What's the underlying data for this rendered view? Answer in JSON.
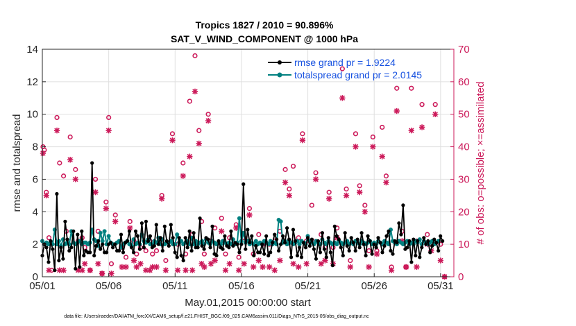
{
  "chart_data": {
    "type": "line",
    "title_line1": "Tropics 1827 / 2010 = 90.896%",
    "title_line2": "SAT_V_WIND_COMPONENT @ 1000 hPa",
    "xlabel": "May.01,2015 00:00:00 start",
    "ylabel_left": "rmse and totalspread",
    "ylabel_right": "# of obs: o=possible; ×=assimilated",
    "footer": "data file: /Users/raeder/DAI/ATM_forcXX/CAM6_setup/f.e21.FHIST_BGC.f09_025.CAM6assim.011/Diags_NTrS_2015-05/obs_diag_output.nc",
    "xlim": [
      1,
      32
    ],
    "ylim_left": [
      0,
      14
    ],
    "ylim_right": [
      0,
      70
    ],
    "x_ticks": [
      1,
      6,
      11,
      16,
      21,
      26,
      31
    ],
    "x_tick_labels": [
      "05/01",
      "05/06",
      "05/11",
      "05/16",
      "05/21",
      "05/26",
      "05/31"
    ],
    "y_ticks_left": [
      "0",
      "2",
      "4",
      "6",
      "8",
      "10",
      "12",
      "14"
    ],
    "y_ticks_right": [
      "0",
      "10",
      "20",
      "30",
      "40",
      "50",
      "60",
      "70"
    ],
    "colors": {
      "rmse": "#000000",
      "spread": "#008080",
      "obs": "#cc1a5a",
      "legend_text": "#1550e0"
    },
    "series": [
      {
        "name": "rmse grand pr = 1.9224",
        "values": [
          1.3,
          2.0,
          1.8,
          0.9,
          2.2,
          1.7,
          0.4,
          5.1,
          1.0,
          1.8,
          1.1,
          3.4,
          2.3,
          1.6,
          1.8,
          2.8,
          0.5,
          2.6,
          0.6,
          2.8,
          1.3,
          1.6,
          1.5,
          1.5,
          7.0,
          1.3,
          1.9,
          2.2,
          1.7,
          2.0,
          1.5,
          1.5,
          2.0,
          2.1,
          1.8,
          2.0,
          1.6,
          1.6,
          2.6,
          1.5,
          2.1,
          2.2,
          2.8,
          1.8,
          1.5,
          2.8,
          2.5,
          1.7,
          3.3,
          1.8,
          3.4,
          2.2,
          2.5,
          1.8,
          1.9,
          3.2,
          2.0,
          2.4,
          1.6,
          3.1,
          2.2,
          1.9,
          3.2,
          2.4,
          1.5,
          1.2,
          2.4,
          1.3,
          1.0,
          2.4,
          1.8,
          2.8,
          1.6,
          2.7,
          1.8,
          1.8,
          3.6,
          1.9,
          1.7,
          2.4,
          2.3,
          1.8,
          3.1,
          1.4,
          1.3,
          2.2,
          1.8,
          1.7,
          2.5,
          1.9,
          1.8,
          2.8,
          1.9,
          2.1,
          2.0,
          1.5,
          2.0,
          5.7,
          1.7,
          2.9,
          2.1,
          2.5,
          1.3,
          1.9,
          1.5,
          1.5,
          2.0,
          1.4,
          2.5,
          1.3,
          1.5,
          2.1,
          2.6,
          2.3,
          1.6,
          2.0,
          2.5,
          2.1,
          3.0,
          2.3,
          1.2,
          2.9,
          2.2,
          1.3,
          1.8,
          1.2,
          2.1,
          1.8,
          2.4,
          1.9,
          2.3,
          1.7,
          1.1,
          2.2,
          1.5,
          2.7,
          1.7,
          1.2,
          2.4,
          1.5,
          0.7,
          3.1,
          2.5,
          2.3,
          1.8,
          1.3,
          2.7,
          1.9,
          1.6,
          2.4,
          2.1,
          1.6,
          2.3,
          1.8,
          2.7,
          2.0,
          1.3,
          2.5,
          2.2,
          1.4,
          2.0,
          1.8,
          2.4,
          2.1,
          1.5,
          1.9,
          2.5,
          2.8,
          1.6,
          1.4,
          2.2,
          2.1,
          3.3,
          2.6,
          4.4,
          1.7,
          1.8,
          2.2,
          0.9,
          2.3,
          1.3,
          2.2,
          1.2,
          1.8,
          2.4,
          2.0,
          2.2,
          1.5,
          1.9,
          2.3,
          2.1,
          1.6,
          2.5,
          2.2
        ],
        "start": 1.0,
        "step": 0.1562
      },
      {
        "name": "totalspread grand pr = 2.0145",
        "values": [
          2.2,
          2.0,
          2.1,
          2.0,
          2.1,
          2.0,
          2.9,
          2.0,
          2.2,
          1.9,
          2.3,
          2.0,
          2.1,
          2.0,
          2.8,
          2.1,
          2.0,
          2.1,
          2.2,
          2.0,
          2.1,
          2.1,
          2.0,
          2.1,
          2.9,
          2.3,
          2.2,
          1.9,
          2.7,
          2.2,
          2.8,
          2.0,
          2.5,
          2.1,
          2.0,
          2.0,
          2.1,
          2.2,
          1.8,
          2.0,
          2.1,
          2.2,
          2.0,
          1.9,
          2.3,
          2.0,
          2.1,
          2.0,
          2.6,
          2.2,
          2.1,
          2.3,
          2.0,
          2.0,
          2.2,
          2.1,
          2.4,
          2.0,
          2.3,
          2.0,
          2.1,
          2.1,
          2.2,
          2.0,
          2.0,
          2.6,
          2.1,
          2.2,
          2.0,
          2.1,
          2.2,
          2.0,
          2.4,
          2.0,
          2.2,
          2.0,
          2.1,
          2.2,
          2.0,
          2.3,
          2.1,
          2.0,
          2.2,
          2.1,
          2.0,
          2.1,
          2.0,
          2.2,
          2.1,
          2.0,
          2.1,
          2.0,
          2.3,
          2.0,
          2.1,
          3.6,
          2.2,
          2.7,
          2.1,
          2.2,
          2.0,
          2.1,
          2.0,
          2.2,
          2.0,
          2.1,
          2.0,
          2.2,
          2.1,
          2.0,
          2.2,
          2.0,
          2.1,
          2.0,
          3.5,
          3.4,
          2.1,
          2.2,
          2.0,
          2.2,
          2.1,
          2.0,
          2.1,
          2.2,
          2.0,
          2.2,
          2.1,
          2.0,
          2.5,
          2.2,
          2.1,
          2.0,
          2.2,
          2.1,
          2.0,
          2.3,
          2.1,
          2.0,
          2.2,
          2.1,
          2.0,
          2.1,
          2.0,
          2.2,
          2.1,
          2.0,
          2.1,
          2.2,
          2.0,
          2.1,
          2.0,
          2.2,
          2.1,
          2.0,
          2.2,
          2.1,
          2.0,
          2.1,
          2.2,
          2.0,
          2.1,
          2.0,
          2.2,
          2.1,
          2.0,
          2.2,
          2.1,
          2.0,
          2.9,
          2.2,
          2.1,
          2.0,
          2.2,
          2.1,
          2.0,
          2.1,
          2.2,
          2.0,
          2.1,
          2.0,
          2.2,
          2.1,
          2.3,
          2.0,
          2.2,
          2.1,
          2.0,
          2.1,
          2.2,
          2.0,
          2.1,
          2.2
        ],
        "start": 1.0,
        "step": 0.1562
      }
    ],
    "obs_possible": [
      [
        1.05,
        40
      ],
      [
        1.15,
        39
      ],
      [
        1.3,
        26
      ],
      [
        1.5,
        12
      ],
      [
        1.7,
        2
      ],
      [
        2.1,
        49
      ],
      [
        2.3,
        35
      ],
      [
        2.6,
        31
      ],
      [
        2.8,
        14
      ],
      [
        3.1,
        43
      ],
      [
        3.5,
        33
      ],
      [
        3.7,
        11
      ],
      [
        4.0,
        12
      ],
      [
        4.2,
        9
      ],
      [
        4.6,
        2
      ],
      [
        5.0,
        30
      ],
      [
        5.2,
        14
      ],
      [
        5.5,
        1
      ],
      [
        5.8,
        23
      ],
      [
        6.0,
        49
      ],
      [
        6.2,
        4
      ],
      [
        6.5,
        19
      ],
      [
        7.0,
        9
      ],
      [
        7.3,
        6
      ],
      [
        7.6,
        17
      ],
      [
        7.9,
        11
      ],
      [
        8.1,
        7
      ],
      [
        8.4,
        9
      ],
      [
        8.8,
        8
      ],
      [
        9.1,
        11
      ],
      [
        9.3,
        7
      ],
      [
        9.6,
        8
      ],
      [
        10.0,
        25
      ],
      [
        10.3,
        5
      ],
      [
        10.8,
        44
      ],
      [
        11.2,
        10
      ],
      [
        11.6,
        35
      ],
      [
        11.8,
        7
      ],
      [
        12.1,
        54
      ],
      [
        12.3,
        13
      ],
      [
        12.5,
        68
      ],
      [
        12.8,
        45
      ],
      [
        13.0,
        17
      ],
      [
        13.2,
        7
      ],
      [
        13.5,
        50
      ],
      [
        13.7,
        11
      ],
      [
        14.0,
        15
      ],
      [
        14.5,
        18
      ],
      [
        14.8,
        7
      ],
      [
        15.1,
        12
      ],
      [
        15.6,
        16
      ],
      [
        15.8,
        6
      ],
      [
        16.2,
        12
      ],
      [
        16.6,
        21
      ],
      [
        16.9,
        7
      ],
      [
        17.3,
        13
      ],
      [
        17.6,
        10
      ],
      [
        18.1,
        10
      ],
      [
        18.5,
        11
      ],
      [
        18.9,
        14
      ],
      [
        19.3,
        33
      ],
      [
        19.6,
        27
      ],
      [
        19.9,
        34
      ],
      [
        20.3,
        12
      ],
      [
        20.6,
        44
      ],
      [
        20.9,
        11
      ],
      [
        21.3,
        22
      ],
      [
        21.6,
        32
      ],
      [
        22.0,
        13
      ],
      [
        22.3,
        9
      ],
      [
        22.6,
        26
      ],
      [
        22.9,
        9
      ],
      [
        23.2,
        15
      ],
      [
        23.6,
        64
      ],
      [
        23.9,
        27
      ],
      [
        24.2,
        5
      ],
      [
        24.6,
        44
      ],
      [
        24.9,
        28
      ],
      [
        25.3,
        22
      ],
      [
        25.6,
        8
      ],
      [
        25.9,
        43
      ],
      [
        26.2,
        8
      ],
      [
        26.6,
        46
      ],
      [
        26.9,
        31
      ],
      [
        27.3,
        3
      ],
      [
        27.7,
        58
      ],
      [
        28.1,
        14
      ],
      [
        28.4,
        3
      ],
      [
        28.8,
        58
      ],
      [
        29.2,
        11
      ],
      [
        29.6,
        53
      ],
      [
        30.0,
        13
      ],
      [
        30.3,
        10
      ],
      [
        30.6,
        53
      ],
      [
        31.0,
        10
      ],
      [
        31.3,
        0
      ]
    ],
    "obs_assimilated": [
      [
        1.05,
        38
      ],
      [
        1.3,
        25
      ],
      [
        1.5,
        2
      ],
      [
        2.1,
        45
      ],
      [
        2.3,
        2
      ],
      [
        2.6,
        2
      ],
      [
        3.1,
        36
      ],
      [
        3.5,
        30
      ],
      [
        3.7,
        2
      ],
      [
        4.0,
        2
      ],
      [
        4.2,
        4
      ],
      [
        4.6,
        2
      ],
      [
        5.0,
        26
      ],
      [
        5.2,
        4
      ],
      [
        5.5,
        1
      ],
      [
        5.8,
        21
      ],
      [
        6.0,
        45
      ],
      [
        6.2,
        1
      ],
      [
        6.5,
        17
      ],
      [
        7.0,
        3
      ],
      [
        7.3,
        3
      ],
      [
        7.6,
        15
      ],
      [
        7.9,
        5
      ],
      [
        8.1,
        3
      ],
      [
        8.4,
        4
      ],
      [
        8.8,
        2
      ],
      [
        9.1,
        2
      ],
      [
        9.3,
        3
      ],
      [
        9.6,
        3
      ],
      [
        10.0,
        24
      ],
      [
        10.3,
        2
      ],
      [
        10.8,
        42
      ],
      [
        11.2,
        2
      ],
      [
        11.6,
        31
      ],
      [
        11.8,
        2
      ],
      [
        12.1,
        37
      ],
      [
        12.3,
        2
      ],
      [
        12.5,
        57
      ],
      [
        12.8,
        41
      ],
      [
        13.0,
        4
      ],
      [
        13.2,
        3
      ],
      [
        13.5,
        48
      ],
      [
        13.7,
        4
      ],
      [
        14.0,
        5
      ],
      [
        14.5,
        14
      ],
      [
        14.8,
        2
      ],
      [
        15.1,
        4
      ],
      [
        15.6,
        15
      ],
      [
        15.8,
        2
      ],
      [
        16.2,
        4
      ],
      [
        16.6,
        19
      ],
      [
        16.9,
        3
      ],
      [
        17.3,
        5
      ],
      [
        17.6,
        3
      ],
      [
        18.1,
        3
      ],
      [
        18.5,
        2
      ],
      [
        18.9,
        5
      ],
      [
        19.3,
        29
      ],
      [
        19.6,
        25
      ],
      [
        19.9,
        4
      ],
      [
        20.3,
        3
      ],
      [
        20.6,
        42
      ],
      [
        20.9,
        4
      ],
      [
        21.3,
        11
      ],
      [
        21.6,
        30
      ],
      [
        22.0,
        4
      ],
      [
        22.3,
        5
      ],
      [
        22.6,
        24
      ],
      [
        22.9,
        4
      ],
      [
        23.2,
        12
      ],
      [
        23.6,
        55
      ],
      [
        23.9,
        25
      ],
      [
        24.2,
        3
      ],
      [
        24.6,
        40
      ],
      [
        24.9,
        26
      ],
      [
        25.3,
        20
      ],
      [
        25.6,
        3
      ],
      [
        25.9,
        40
      ],
      [
        26.2,
        7
      ],
      [
        26.6,
        37
      ],
      [
        26.9,
        29
      ],
      [
        27.3,
        2
      ],
      [
        27.7,
        51
      ],
      [
        28.1,
        11
      ],
      [
        28.4,
        3
      ],
      [
        28.8,
        45
      ],
      [
        29.2,
        3
      ],
      [
        29.6,
        46
      ],
      [
        30.0,
        10
      ],
      [
        30.3,
        8
      ],
      [
        30.6,
        50
      ],
      [
        31.0,
        5
      ],
      [
        31.3,
        0
      ]
    ]
  }
}
